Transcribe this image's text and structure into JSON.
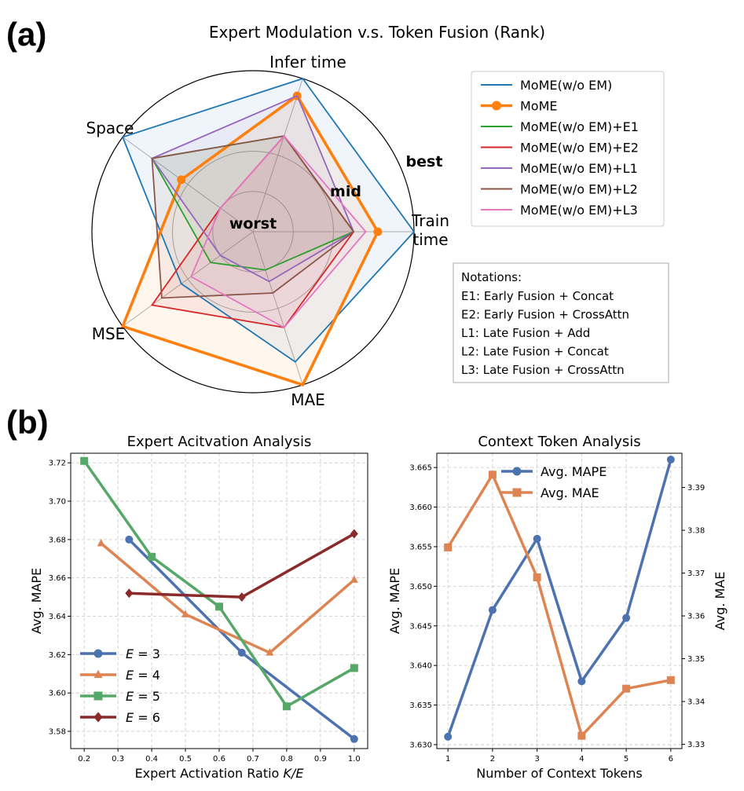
{
  "figure": {
    "label_a": "(a)",
    "label_b": "(b)"
  },
  "chart_data": [
    {
      "type": "radar",
      "title": "Expert Modulation v.s. Token Fusion (Rank)",
      "axes": [
        "Train time",
        "Infer time",
        "Space",
        "MSE",
        "MAE"
      ],
      "axis_label_lines": [
        [
          "Train",
          "time"
        ],
        [
          "Infer time"
        ],
        [
          "Space"
        ],
        [
          "MSE"
        ],
        [
          "MAE"
        ]
      ],
      "level_labels": [
        "worst",
        "mid",
        "best"
      ],
      "series": [
        {
          "name": "MoME(w/o EM)",
          "color": "#1f77b4",
          "bold": false,
          "marker": false,
          "values": [
            1.0,
            1.0,
            1.0,
            0.4,
            0.8
          ]
        },
        {
          "name": "MoME",
          "color": "#ff7f0e",
          "bold": true,
          "marker": true,
          "values": [
            0.7,
            0.85,
            0.4,
            1.0,
            1.0
          ]
        },
        {
          "name": "MoME(w/o EM)+E1",
          "color": "#2ca02c",
          "bold": false,
          "marker": false,
          "values": [
            0.5,
            0.5,
            0.7,
            0.1,
            0.0
          ]
        },
        {
          "name": "MoME(w/o EM)+E2",
          "color": "#d62728",
          "bold": false,
          "marker": false,
          "values": [
            0.5,
            0.5,
            0.0,
            0.7,
            0.5
          ]
        },
        {
          "name": "MoME(w/o EM)+L1",
          "color": "#9467bd",
          "bold": false,
          "marker": false,
          "values": [
            0.5,
            0.85,
            0.7,
            0.0,
            0.1
          ]
        },
        {
          "name": "MoME(w/o EM)+L2",
          "color": "#8c564b",
          "bold": false,
          "marker": false,
          "values": [
            0.5,
            0.5,
            0.7,
            0.6,
            0.2
          ]
        },
        {
          "name": "MoME(w/o EM)+L3",
          "color": "#e377c2",
          "bold": false,
          "marker": false,
          "values": [
            0.6,
            0.5,
            0.0,
            0.3,
            0.5
          ]
        }
      ],
      "notations_title": "Notations:",
      "notations": [
        "E1: Early Fusion + Concat",
        "E2: Early Fusion + CrossAttn",
        "L1: Late Fusion + Add",
        "L2: Late Fusion + Concat",
        "L3: Late Fusion + CrossAttn"
      ]
    },
    {
      "type": "line",
      "title": "Expert Acitvation Analysis",
      "xlabel": "Expert Activation Ratio K/E",
      "xlabel_main": "Expert Activation Ratio ",
      "xlabel_var": "K/E",
      "ylabel": "Avg. MAPE",
      "xlim": [
        0.16,
        1.04
      ],
      "ylim": [
        3.571,
        3.725
      ],
      "xticks": [
        0.2,
        0.3,
        0.4,
        0.5,
        0.6,
        0.7,
        0.8,
        0.9,
        1.0
      ],
      "xtick_labels": [
        "0.2",
        "0.3",
        "0.4",
        "0.5",
        "0.6",
        "0.7",
        "0.8",
        "0.9",
        "1.0"
      ],
      "yticks": [
        3.58,
        3.6,
        3.62,
        3.64,
        3.66,
        3.68,
        3.7,
        3.72
      ],
      "ytick_labels": [
        "3.58",
        "3.60",
        "3.62",
        "3.64",
        "3.66",
        "3.68",
        "3.70",
        "3.72"
      ],
      "series": [
        {
          "name": "E = 3",
          "var": "E",
          "num": "3",
          "color": "#4c72b0",
          "marker": "circle",
          "x": [
            0.333,
            0.667,
            1.0
          ],
          "y": [
            3.68,
            3.621,
            3.576
          ]
        },
        {
          "name": "E = 4",
          "var": "E",
          "num": "4",
          "color": "#dd8452",
          "marker": "triangle",
          "x": [
            0.25,
            0.5,
            0.75,
            1.0
          ],
          "y": [
            3.678,
            3.641,
            3.621,
            3.659
          ]
        },
        {
          "name": "E = 5",
          "var": "E",
          "num": "5",
          "color": "#55a868",
          "marker": "square",
          "x": [
            0.2,
            0.4,
            0.6,
            0.8,
            1.0
          ],
          "y": [
            3.721,
            3.671,
            3.645,
            3.593,
            3.613
          ]
        },
        {
          "name": "E = 6",
          "var": "E",
          "num": "6",
          "color": "#8b2a2a",
          "marker": "diamond",
          "x": [
            0.333,
            0.667,
            1.0
          ],
          "y": [
            3.652,
            3.65,
            3.683
          ]
        }
      ]
    },
    {
      "type": "line",
      "title": "Context Token Analysis",
      "xlabel": "Number of Context Tokens",
      "ylabel": "Avg. MAPE",
      "ylabel_right": "Avg. MAE",
      "xlim": [
        0.75,
        6.25
      ],
      "ylim": [
        3.6295,
        3.6668
      ],
      "ylim_right": [
        3.329,
        3.398
      ],
      "xticks": [
        1,
        2,
        3,
        4,
        5,
        6
      ],
      "xtick_labels": [
        "1",
        "2",
        "3",
        "4",
        "5",
        "6"
      ],
      "yticks": [
        3.63,
        3.635,
        3.64,
        3.645,
        3.65,
        3.655,
        3.66,
        3.665
      ],
      "ytick_labels": [
        "3.630",
        "3.635",
        "3.640",
        "3.645",
        "3.650",
        "3.655",
        "3.660",
        "3.665"
      ],
      "yticks_right": [
        3.33,
        3.34,
        3.35,
        3.36,
        3.37,
        3.38,
        3.39
      ],
      "ytick_labels_right": [
        "3.33",
        "3.34",
        "3.35",
        "3.36",
        "3.37",
        "3.38",
        "3.39"
      ],
      "series": [
        {
          "name": "Avg. MAPE",
          "axis": "left",
          "color": "#4c72b0",
          "marker": "circle",
          "x": [
            1,
            2,
            3,
            4,
            5,
            6
          ],
          "y": [
            3.631,
            3.647,
            3.656,
            3.638,
            3.646,
            3.666
          ]
        },
        {
          "name": "Avg. MAE",
          "axis": "right",
          "color": "#dd8452",
          "marker": "square",
          "x": [
            1,
            2,
            3,
            4,
            5,
            6
          ],
          "y": [
            3.376,
            3.393,
            3.369,
            3.332,
            3.343,
            3.345
          ]
        }
      ]
    }
  ]
}
